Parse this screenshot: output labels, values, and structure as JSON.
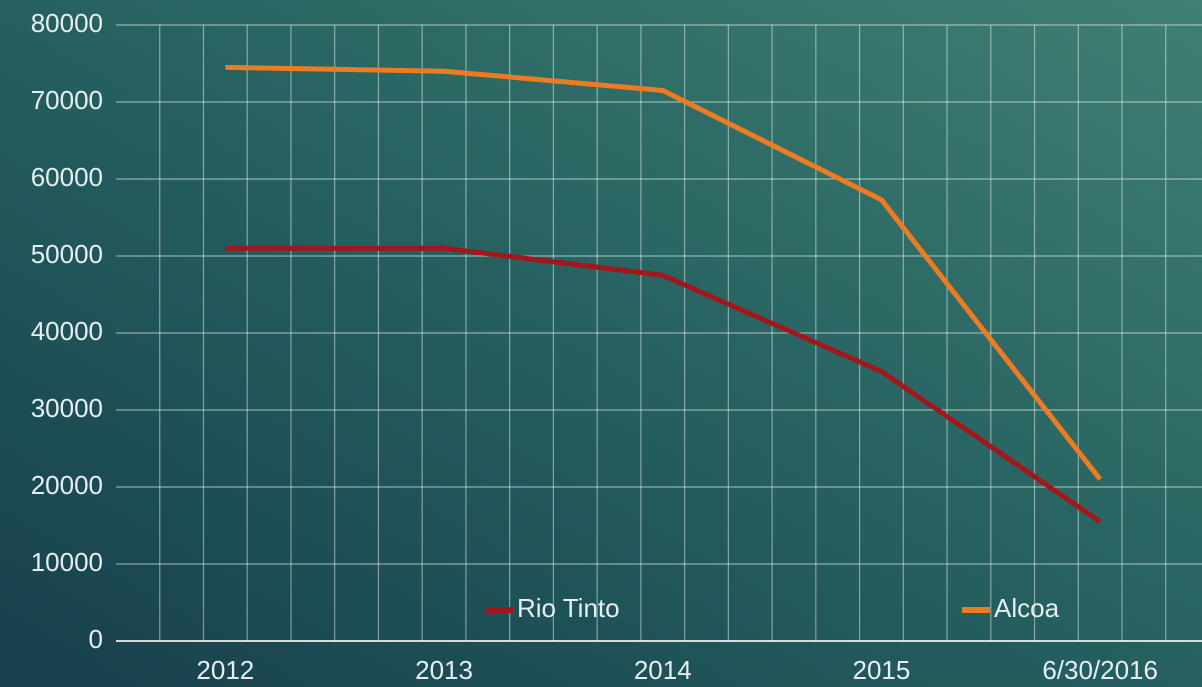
{
  "chart_data": {
    "type": "line",
    "categories": [
      "2012",
      "2013",
      "2014",
      "2015",
      "6/30/2016"
    ],
    "series": [
      {
        "name": "Rio Tinto",
        "color": "#a3171c",
        "values": [
          51000,
          51000,
          47500,
          35000,
          15500
        ]
      },
      {
        "name": "Alcoa",
        "color": "#ec7b22",
        "values": [
          74500,
          74000,
          71500,
          57300,
          21000
        ]
      }
    ],
    "ylim": [
      0,
      80000
    ],
    "yticks": [
      0,
      10000,
      20000,
      30000,
      40000,
      50000,
      60000,
      70000,
      80000
    ],
    "grid": true,
    "legend": "bottom"
  }
}
